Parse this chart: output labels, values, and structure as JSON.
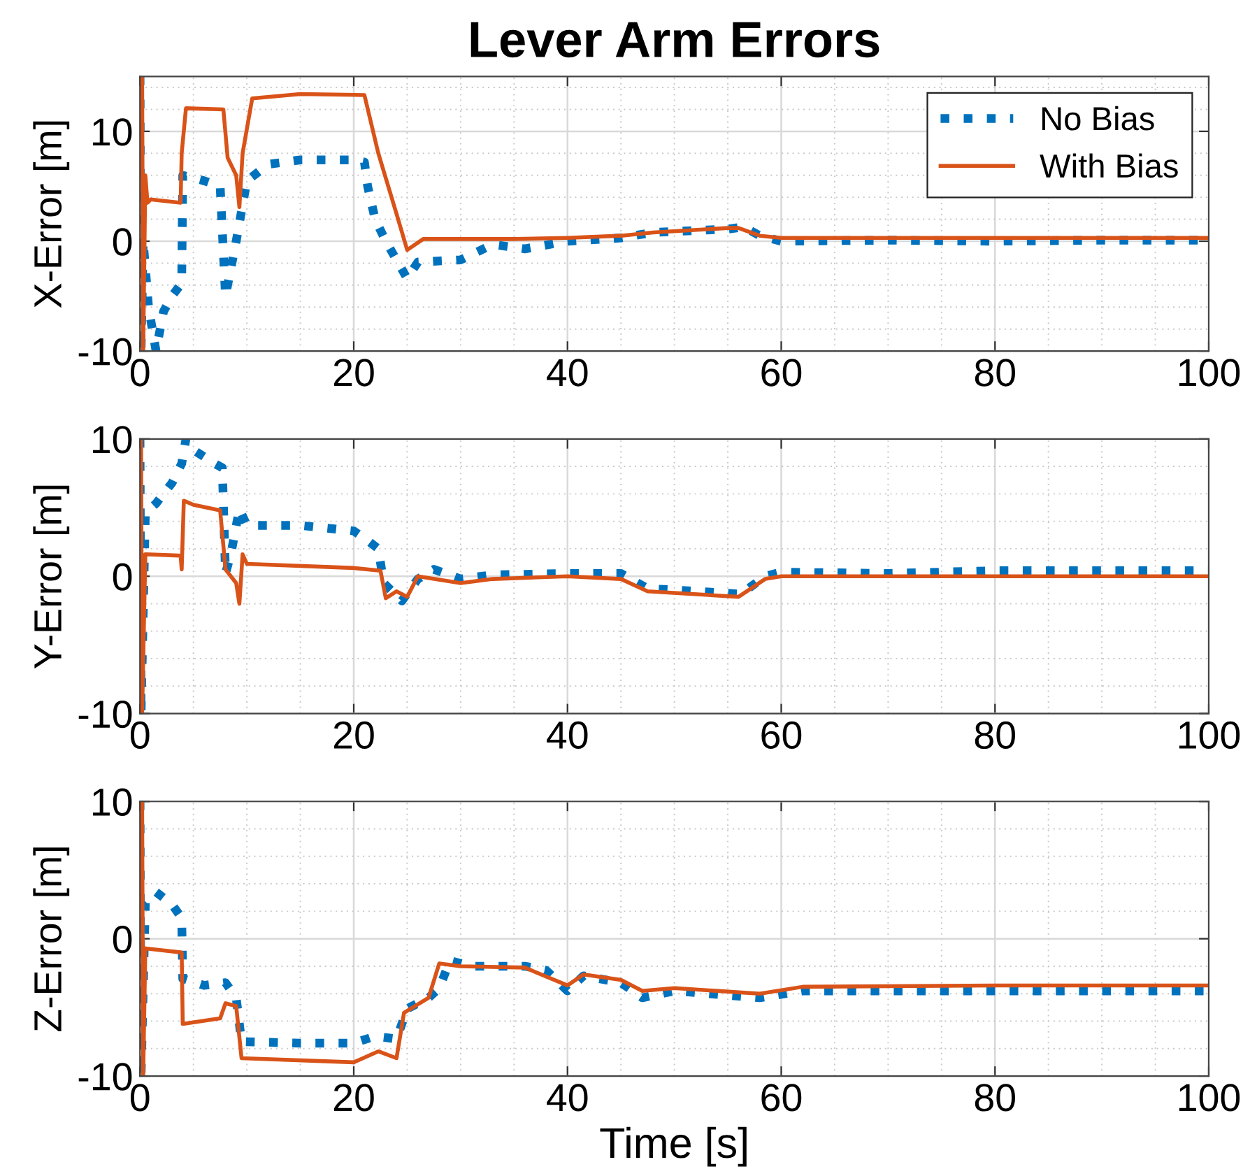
{
  "chart_data": [
    {
      "type": "line",
      "title": "Lever Arm Errors",
      "ylabel": "X-Error [m]",
      "xlim": [
        0,
        100
      ],
      "ylim": [
        -10,
        15
      ],
      "xticks": [
        0,
        20,
        40,
        60,
        80,
        100
      ],
      "yticks": [
        -10,
        0,
        10
      ],
      "grid": true,
      "legend": "top right",
      "series": [
        {
          "name": "No Bias",
          "color": "#0072bd",
          "line_style": "dotted",
          "x": [
            0,
            0.1,
            0.3,
            0.8,
            1.5,
            2.2,
            3.0,
            3.9,
            4.0,
            6,
            7.5,
            8.0,
            9.0,
            10.0,
            12,
            15,
            20,
            21,
            21.3,
            22,
            23,
            25,
            26,
            30,
            33,
            36,
            40,
            45,
            48,
            55,
            56.5,
            58,
            60,
            70,
            80,
            90,
            100
          ],
          "values": [
            15,
            -10,
            0,
            -6,
            -10,
            -6.4,
            -5,
            -3.8,
            6,
            5.5,
            5,
            -5,
            0,
            5.5,
            7,
            7.4,
            7.4,
            7.2,
            5,
            2,
            0,
            -3.4,
            -1.9,
            -1.7,
            -0.3,
            -0.7,
            0,
            0.3,
            0.8,
            1.1,
            1.3,
            0.5,
            0,
            0.1,
            0,
            0.1,
            0.1
          ]
        },
        {
          "name": "With Bias",
          "color": "#d95319",
          "line_style": "solid",
          "x": [
            0.2,
            0.3,
            0.5,
            0.7,
            1,
            3.8,
            3.9,
            4.3,
            7.8,
            8.2,
            9,
            9.3,
            9.6,
            10.5,
            15,
            21,
            22.3,
            24,
            25,
            26.5,
            30,
            35,
            40,
            45,
            48,
            55,
            56,
            58,
            60,
            70,
            80,
            100
          ],
          "values": [
            15,
            -10,
            6,
            3.5,
            3.8,
            3.5,
            8,
            12.1,
            12,
            7.6,
            6,
            3.1,
            8,
            13,
            13.4,
            13.3,
            8,
            2.5,
            -0.8,
            0.2,
            0.2,
            0.2,
            0.3,
            0.5,
            0.8,
            1.2,
            1.2,
            0.5,
            0.3,
            0.3,
            0.3,
            0.3
          ]
        }
      ]
    },
    {
      "type": "line",
      "ylabel": "Y-Error [m]",
      "xlim": [
        0,
        100
      ],
      "ylim": [
        -10,
        10
      ],
      "xticks": [
        0,
        20,
        40,
        60,
        80,
        100
      ],
      "yticks": [
        -10,
        0,
        10
      ],
      "grid": true,
      "series": [
        {
          "color": "#0072bd",
          "line_style": "dotted",
          "x": [
            0,
            0.1,
            0.5,
            1.5,
            3,
            3.9,
            4.3,
            5,
            7,
            7.7,
            8,
            8.5,
            9.3,
            10,
            15,
            20,
            21.3,
            22.3,
            22.8,
            24.5,
            26,
            27.5,
            30,
            33,
            40,
            45,
            47.5,
            50,
            56.2,
            58.5,
            60,
            70,
            80,
            90,
            100
          ],
          "values": [
            10,
            -10,
            4.6,
            5.3,
            6.8,
            8.2,
            10,
            9.2,
            8.2,
            7.9,
            0.2,
            1.6,
            4.9,
            3.7,
            3.7,
            3.3,
            2.6,
            2,
            -0.5,
            -1.8,
            -0.2,
            0.5,
            -0.2,
            0.1,
            0.2,
            0.2,
            -0.9,
            -1,
            -1.3,
            0,
            0.3,
            0.2,
            0.4,
            0.4,
            0.4
          ]
        },
        {
          "color": "#d95319",
          "line_style": "solid",
          "x": [
            0.1,
            0.2,
            0.5,
            3.8,
            3.9,
            4.1,
            5,
            7.5,
            8,
            9,
            9.3,
            9.6,
            10,
            20,
            22.5,
            23,
            24,
            25,
            26,
            30,
            33,
            40,
            45,
            47.5,
            56,
            58.5,
            60,
            80,
            100
          ],
          "values": [
            10,
            -10,
            1.6,
            1.5,
            0.5,
            5.5,
            5.2,
            4.8,
            0.5,
            -0.5,
            -2,
            1.6,
            0.9,
            0.6,
            0.4,
            -1.6,
            -1.1,
            -1.5,
            0,
            -0.5,
            -0.2,
            0,
            -0.2,
            -1.1,
            -1.5,
            -0.2,
            0,
            0,
            0
          ]
        }
      ]
    },
    {
      "type": "line",
      "xlabel": "Time [s]",
      "ylabel": "Z-Error [m]",
      "xlim": [
        0,
        100
      ],
      "ylim": [
        -10,
        10
      ],
      "xticks": [
        0,
        20,
        40,
        60,
        80,
        100
      ],
      "yticks": [
        -10,
        0,
        10
      ],
      "grid": true,
      "series": [
        {
          "color": "#0072bd",
          "line_style": "dotted",
          "x": [
            0,
            0.1,
            0.5,
            1.5,
            3,
            3.9,
            4,
            6,
            8,
            9,
            9.5,
            15,
            20,
            22,
            24,
            25,
            27,
            28,
            29,
            31,
            36,
            38,
            40,
            41.5,
            45,
            47,
            50,
            58,
            62,
            80,
            100
          ],
          "values": [
            10,
            -10,
            2.6,
            3.4,
            2.5,
            1.5,
            -2.9,
            -3.4,
            -3.2,
            -4.3,
            -7.5,
            -7.6,
            -7.6,
            -7.1,
            -7.3,
            -5.1,
            -4.3,
            -3.6,
            -1.6,
            -2,
            -2,
            -2.3,
            -3.8,
            -2.7,
            -3.2,
            -4.3,
            -3.8,
            -4.3,
            -3.8,
            -3.8,
            -3.8
          ]
        },
        {
          "color": "#d95319",
          "line_style": "solid",
          "x": [
            0.2,
            0.3,
            0.5,
            3.9,
            4,
            7.5,
            8,
            9,
            9.5,
            20,
            22.3,
            24,
            24.7,
            27,
            28,
            30,
            36,
            40,
            41.5,
            45,
            47,
            50,
            58,
            62,
            80,
            100
          ],
          "values": [
            10,
            -10,
            -0.7,
            -1,
            -6.2,
            -5.8,
            -4.7,
            -4.9,
            -8.7,
            -9,
            -8.2,
            -8.7,
            -5.4,
            -4.3,
            -1.8,
            -2,
            -2.1,
            -3.4,
            -2.6,
            -3,
            -3.8,
            -3.6,
            -4,
            -3.5,
            -3.4,
            -3.4
          ]
        }
      ]
    }
  ]
}
